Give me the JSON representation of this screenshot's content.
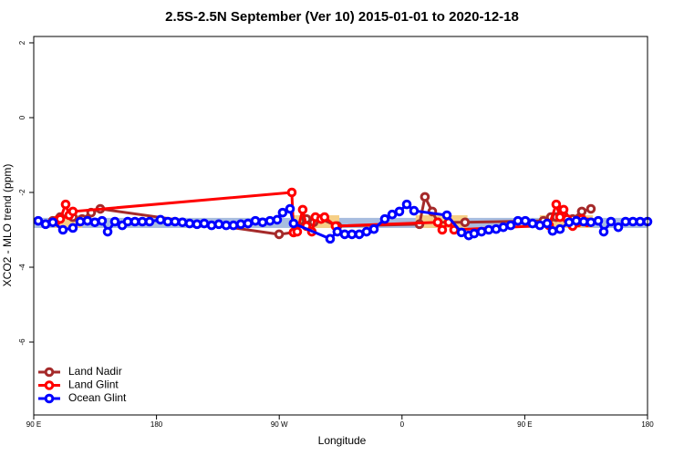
{
  "chart_data": {
    "type": "line",
    "title": "2.5S-2.5N September (Ver 10)   2015-01-01 to 2020-12-18",
    "x_label": "Longitude",
    "y_label": "XCO2 - MLO trend (ppm)",
    "xlim": [
      90,
      540
    ],
    "ylim": [
      -7.95,
      2.17
    ],
    "xticks": [
      {
        "value": 90,
        "label": "90 E"
      },
      180,
      {
        "value": 270,
        "label": "90 W"
      },
      {
        "value": 360,
        "label": "0"
      },
      {
        "value": 450,
        "label": "90 E"
      },
      {
        "value": 540,
        "label": "180"
      }
    ],
    "yticks": [
      -6,
      -4,
      -2,
      0,
      2
    ],
    "legend": "bottom-left",
    "bands": [
      {
        "x": [
          90,
          540
        ],
        "y": [
          -2.95,
          -2.68
        ],
        "color": "#a8bddf"
      },
      {
        "x": [
          105.4,
          125.5
        ],
        "y": [
          -2.95,
          -2.61
        ],
        "color": "#f6cf86"
      },
      {
        "x": [
          278,
          314
        ],
        "y": [
          -2.95,
          -2.61
        ],
        "color": "#f6cf86"
      },
      {
        "x": [
          370,
          408
        ],
        "y": [
          -2.95,
          -2.61
        ],
        "color": "#f6cf86"
      },
      {
        "x": [
          461,
          500
        ],
        "y": [
          -2.95,
          -2.61
        ],
        "color": "#f6cf86"
      }
    ],
    "series": [
      {
        "name": "Land Nadir",
        "color": "#a52a2a",
        "x": [
          104,
          109.4,
          118.7,
          125.5,
          132.1,
          138.8,
          269.9,
          280.5,
          289.9,
          295.2,
          300.6,
          312.6,
          372.8,
          376.8,
          382.2,
          386.2,
          406.2,
          463.7,
          469.1,
          473.1,
          478.5,
          485.1,
          491.8,
          498.5
        ],
        "values": [
          -2.76,
          -2.66,
          -2.66,
          -2.71,
          -2.54,
          -2.44,
          -3.12,
          -3.07,
          -2.71,
          -2.8,
          -2.71,
          -2.9,
          -2.85,
          -2.12,
          -2.51,
          -2.8,
          -2.8,
          -2.76,
          -2.66,
          -2.66,
          -2.61,
          -2.71,
          -2.51,
          -2.44
        ]
      },
      {
        "name": "Land Glint",
        "color": "#ff0000",
        "x": [
          106.7,
          109.4,
          113.4,
          116,
          118.7,
          279.2,
          280.5,
          283.2,
          287.2,
          289.9,
          293.9,
          296.5,
          300.6,
          303.2,
          311.3,
          386.2,
          389.5,
          394.2,
          398.2,
          467.8,
          473.1,
          475.8,
          478.5,
          481.1,
          485.1,
          489.1,
          491.8,
          495.8
        ],
        "values": [
          -2.76,
          -2.71,
          -2.32,
          -2.61,
          -2.51,
          -2.0,
          -3.07,
          -3.05,
          -2.46,
          -2.9,
          -3.05,
          -2.66,
          -2.71,
          -2.66,
          -2.9,
          -2.8,
          -3.0,
          -2.8,
          -3.0,
          -2.88,
          -2.32,
          -2.66,
          -2.46,
          -2.71,
          -2.9,
          -2.8,
          -2.71,
          -2.8
        ]
      },
      {
        "name": "Ocean Glint",
        "color": "#0000ff",
        "x": [
          93.3,
          98.7,
          104,
          111.4,
          118.7,
          124.1,
          129.4,
          134.8,
          140.1,
          144.2,
          149.5,
          154.9,
          158.9,
          164.2,
          169.6,
          174.9,
          182.9,
          188.3,
          193.6,
          199,
          204.3,
          209.7,
          215,
          220.4,
          225.7,
          231.1,
          236.4,
          241.8,
          247.1,
          252.5,
          257.8,
          263.2,
          268.5,
          272.5,
          277.9,
          280.5,
          307.3,
          312.6,
          318,
          323.3,
          328.7,
          334,
          339.4,
          347.4,
          352.8,
          358.1,
          363.5,
          368.8,
          392.9,
          403.6,
          408.9,
          412.9,
          418.3,
          423.6,
          429,
          434.3,
          439.7,
          445,
          450.4,
          455.7,
          461.1,
          466.4,
          470.4,
          475.8,
          482.5,
          487.8,
          493.2,
          498.5,
          503.9,
          507.9,
          513.2,
          518.6,
          523.9,
          529.3,
          534.6,
          540
        ],
        "values": [
          -2.76,
          -2.85,
          -2.8,
          -3.0,
          -2.95,
          -2.78,
          -2.76,
          -2.8,
          -2.76,
          -3.05,
          -2.78,
          -2.88,
          -2.78,
          -2.78,
          -2.78,
          -2.78,
          -2.73,
          -2.78,
          -2.78,
          -2.8,
          -2.83,
          -2.85,
          -2.83,
          -2.88,
          -2.85,
          -2.88,
          -2.88,
          -2.85,
          -2.83,
          -2.76,
          -2.8,
          -2.76,
          -2.73,
          -2.54,
          -2.44,
          -2.83,
          -3.24,
          -3.05,
          -3.12,
          -3.12,
          -3.12,
          -3.05,
          -2.98,
          -2.71,
          -2.59,
          -2.51,
          -2.32,
          -2.49,
          -2.61,
          -3.07,
          -3.15,
          -3.1,
          -3.05,
          -3.0,
          -2.98,
          -2.93,
          -2.88,
          -2.76,
          -2.76,
          -2.83,
          -2.88,
          -2.83,
          -3.03,
          -2.98,
          -2.8,
          -2.76,
          -2.78,
          -2.8,
          -2.76,
          -3.05,
          -2.78,
          -2.93,
          -2.78,
          -2.78,
          -2.78,
          -2.78
        ]
      }
    ]
  }
}
